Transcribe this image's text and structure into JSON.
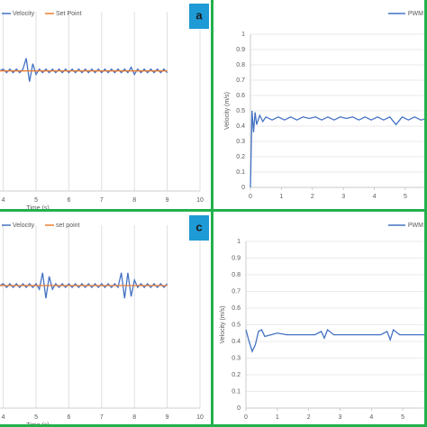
{
  "chart_data": [
    {
      "type": "line",
      "panel_label": "a",
      "xlabel": "Time (s)",
      "legend": "top-left",
      "grid": "x",
      "xlim": [
        3.9,
        10
      ],
      "xticks": [
        4,
        5,
        6,
        7,
        8,
        9,
        10
      ],
      "ylim": [
        0,
        1
      ],
      "x": [
        3.9,
        4.0,
        4.1,
        4.2,
        4.3,
        4.4,
        4.5,
        4.6,
        4.7,
        4.8,
        4.9,
        5.0,
        5.1,
        5.2,
        5.3,
        5.4,
        5.5,
        5.6,
        5.7,
        5.8,
        5.9,
        6.0,
        6.1,
        6.2,
        6.3,
        6.4,
        6.5,
        6.6,
        6.7,
        6.8,
        6.9,
        7.0,
        7.1,
        7.2,
        7.3,
        7.4,
        7.5,
        7.6,
        7.7,
        7.8,
        7.9,
        8.0,
        8.1,
        8.2,
        8.3,
        8.4,
        8.5,
        8.6,
        8.7,
        8.8,
        8.9,
        9.0
      ],
      "series": [
        {
          "name": "Velocity",
          "color": "#4472c4",
          "values": [
            0.67,
            0.68,
            0.66,
            0.68,
            0.66,
            0.68,
            0.66,
            0.68,
            0.74,
            0.61,
            0.71,
            0.65,
            0.68,
            0.66,
            0.68,
            0.66,
            0.68,
            0.66,
            0.68,
            0.66,
            0.68,
            0.66,
            0.68,
            0.66,
            0.68,
            0.66,
            0.68,
            0.66,
            0.68,
            0.66,
            0.68,
            0.66,
            0.68,
            0.66,
            0.68,
            0.66,
            0.68,
            0.66,
            0.68,
            0.66,
            0.69,
            0.65,
            0.68,
            0.66,
            0.68,
            0.66,
            0.68,
            0.66,
            0.68,
            0.66,
            0.68,
            0.66
          ]
        },
        {
          "name": "Set Point",
          "color": "#ed7d31",
          "values": [
            0.67,
            0.67,
            0.67,
            0.67,
            0.67,
            0.67,
            0.67,
            0.67,
            0.67,
            0.67,
            0.67,
            0.67,
            0.67,
            0.67,
            0.67,
            0.67,
            0.67,
            0.67,
            0.67,
            0.67,
            0.67,
            0.67,
            0.67,
            0.67,
            0.67,
            0.67,
            0.67,
            0.67,
            0.67,
            0.67,
            0.67,
            0.67,
            0.67,
            0.67,
            0.67,
            0.67,
            0.67,
            0.67,
            0.67,
            0.67,
            0.67,
            0.67,
            0.67,
            0.67,
            0.67,
            0.67,
            0.67,
            0.67,
            0.67,
            0.67,
            0.67,
            0.67
          ]
        }
      ]
    },
    {
      "type": "line",
      "xlabel": null,
      "ylabel": "Velocity (m/s)",
      "legend": "top-right",
      "grid": "y",
      "xlim": [
        0,
        5.7
      ],
      "xticks": [
        0,
        1,
        2,
        3,
        4,
        5
      ],
      "ylim": [
        0,
        1
      ],
      "yticks": [
        0,
        0.1,
        0.2,
        0.3,
        0.4,
        0.5,
        0.6,
        0.7,
        0.8,
        0.9,
        1
      ],
      "x": [
        0,
        0.05,
        0.1,
        0.15,
        0.2,
        0.3,
        0.4,
        0.5,
        0.7,
        0.9,
        1.1,
        1.3,
        1.5,
        1.7,
        1.9,
        2.1,
        2.3,
        2.5,
        2.7,
        2.9,
        3.1,
        3.3,
        3.5,
        3.7,
        3.9,
        4.1,
        4.3,
        4.5,
        4.7,
        4.9,
        5.1,
        5.3,
        5.5,
        5.7
      ],
      "series": [
        {
          "name": "PWM",
          "color": "#4472c4",
          "values": [
            0,
            0.5,
            0.36,
            0.49,
            0.41,
            0.47,
            0.43,
            0.46,
            0.44,
            0.46,
            0.44,
            0.46,
            0.44,
            0.46,
            0.45,
            0.46,
            0.44,
            0.46,
            0.44,
            0.46,
            0.45,
            0.46,
            0.44,
            0.46,
            0.44,
            0.46,
            0.44,
            0.46,
            0.41,
            0.46,
            0.44,
            0.46,
            0.44,
            0.45
          ]
        }
      ]
    },
    {
      "type": "line",
      "panel_label": "c",
      "xlabel": "Time (s)",
      "legend": "top-left",
      "grid": "x",
      "xlim": [
        3.9,
        10
      ],
      "xticks": [
        4,
        5,
        6,
        7,
        8,
        9,
        10
      ],
      "ylim": [
        0,
        1
      ],
      "x": [
        3.9,
        4.0,
        4.1,
        4.2,
        4.3,
        4.4,
        4.5,
        4.6,
        4.7,
        4.8,
        4.9,
        5.0,
        5.1,
        5.2,
        5.3,
        5.4,
        5.5,
        5.6,
        5.7,
        5.8,
        5.9,
        6.0,
        6.1,
        6.2,
        6.3,
        6.4,
        6.5,
        6.6,
        6.7,
        6.8,
        6.9,
        7.0,
        7.1,
        7.2,
        7.3,
        7.4,
        7.5,
        7.6,
        7.7,
        7.8,
        7.9,
        8.0,
        8.1,
        8.2,
        8.3,
        8.4,
        8.5,
        8.6,
        8.7,
        8.8,
        8.9,
        9.0
      ],
      "series": [
        {
          "name": "Velocity",
          "color": "#4472c4",
          "values": [
            0.67,
            0.68,
            0.66,
            0.68,
            0.66,
            0.68,
            0.66,
            0.68,
            0.66,
            0.68,
            0.66,
            0.68,
            0.65,
            0.74,
            0.6,
            0.72,
            0.65,
            0.68,
            0.66,
            0.68,
            0.66,
            0.68,
            0.66,
            0.68,
            0.66,
            0.68,
            0.66,
            0.68,
            0.66,
            0.68,
            0.66,
            0.68,
            0.66,
            0.68,
            0.66,
            0.68,
            0.66,
            0.74,
            0.6,
            0.74,
            0.61,
            0.7,
            0.66,
            0.68,
            0.66,
            0.68,
            0.66,
            0.68,
            0.66,
            0.68,
            0.66,
            0.68
          ]
        },
        {
          "name": "set point",
          "color": "#ed7d31",
          "values": [
            0.67,
            0.67,
            0.67,
            0.67,
            0.67,
            0.67,
            0.67,
            0.67,
            0.67,
            0.67,
            0.67,
            0.67,
            0.67,
            0.67,
            0.67,
            0.67,
            0.67,
            0.67,
            0.67,
            0.67,
            0.67,
            0.67,
            0.67,
            0.67,
            0.67,
            0.67,
            0.67,
            0.67,
            0.67,
            0.67,
            0.67,
            0.67,
            0.67,
            0.67,
            0.67,
            0.67,
            0.67,
            0.67,
            0.67,
            0.67,
            0.67,
            0.67,
            0.67,
            0.67,
            0.67,
            0.67,
            0.67,
            0.67,
            0.67,
            0.67,
            0.67,
            0.67
          ]
        }
      ]
    },
    {
      "type": "line",
      "xlabel": null,
      "ylabel": "Velocity (m/s)",
      "legend": "top-right",
      "grid": "y",
      "xlim": [
        0,
        5.8
      ],
      "xticks": [
        0,
        1,
        2,
        3,
        4,
        5
      ],
      "ylim": [
        0,
        1
      ],
      "yticks": [
        0,
        0.1,
        0.2,
        0.3,
        0.4,
        0.5,
        0.6,
        0.7,
        0.8,
        0.9,
        1
      ],
      "x": [
        0,
        0.1,
        0.2,
        0.3,
        0.4,
        0.5,
        0.6,
        0.8,
        1.0,
        1.3,
        1.6,
        1.9,
        2.2,
        2.4,
        2.5,
        2.6,
        2.8,
        3.1,
        3.4,
        3.7,
        4.0,
        4.3,
        4.5,
        4.6,
        4.7,
        4.9,
        5.2,
        5.5,
        5.8
      ],
      "series": [
        {
          "name": "PWM",
          "color": "#4472c4",
          "values": [
            0.47,
            0.4,
            0.34,
            0.38,
            0.46,
            0.47,
            0.43,
            0.44,
            0.45,
            0.44,
            0.44,
            0.44,
            0.44,
            0.46,
            0.42,
            0.47,
            0.44,
            0.44,
            0.44,
            0.44,
            0.44,
            0.44,
            0.46,
            0.41,
            0.47,
            0.44,
            0.44,
            0.44,
            0.44
          ]
        }
      ]
    }
  ]
}
